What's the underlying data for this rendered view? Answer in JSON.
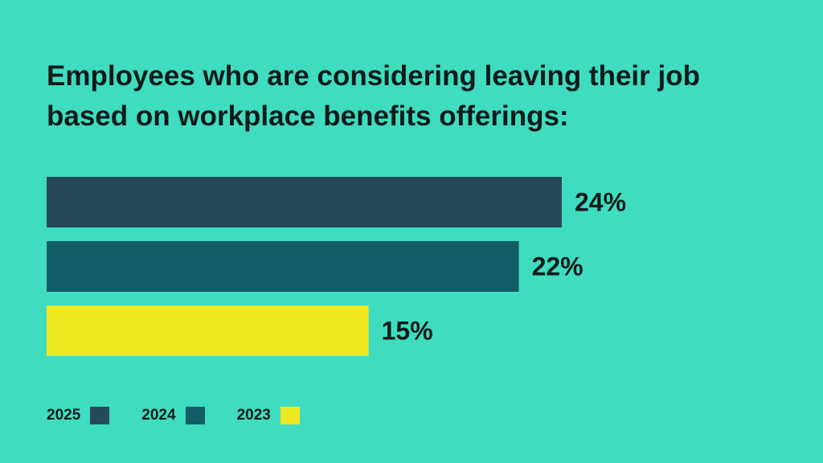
{
  "chart_data": {
    "type": "bar",
    "orientation": "horizontal",
    "title": "Employees who are considering leaving their job based on workplace benefits offerings:",
    "title_lines": [
      "Employees who are considering leaving their job",
      "based on workplace benefits offerings:"
    ],
    "series": [
      {
        "name": "2025",
        "value": 24,
        "label": "24%",
        "color": "#264a5a"
      },
      {
        "name": "2024",
        "value": 22,
        "label": "22%",
        "color": "#125c66"
      },
      {
        "name": "2023",
        "value": 15,
        "label": "15%",
        "color": "#ede81f"
      }
    ],
    "xlim": [
      0,
      24
    ],
    "grid": false,
    "legend_position": "bottom-left"
  },
  "colors": {
    "background": "#3fdcc0",
    "text": "#0d1b1a"
  }
}
